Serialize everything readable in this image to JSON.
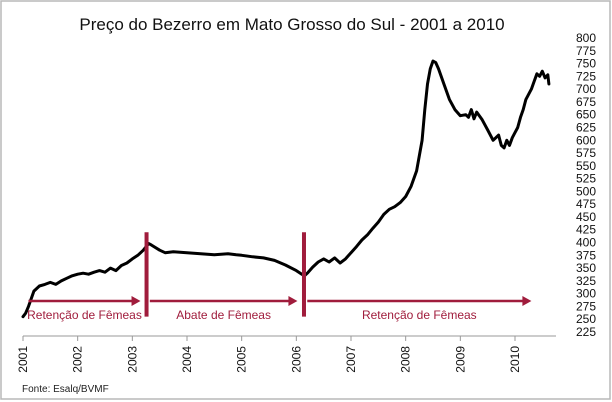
{
  "chart_data": {
    "type": "line",
    "title": "Preço do Bezerro em Mato Grosso do Sul - 2001 a 2010",
    "source": "Fonte: Esalq/BVMF",
    "x_ticks": [
      "2001",
      "2002",
      "2003",
      "2004",
      "2005",
      "2006",
      "2007",
      "2008",
      "2009",
      "2010"
    ],
    "xlim": [
      2001,
      2010.75
    ],
    "y_ticks": [
      "225",
      "250",
      "275",
      "300",
      "325",
      "350",
      "375",
      "400",
      "425",
      "450",
      "475",
      "500",
      "525",
      "550",
      "575",
      "600",
      "625",
      "650",
      "675",
      "700",
      "725",
      "750",
      "775",
      "800"
    ],
    "ylim": [
      225,
      800
    ],
    "line_color": "#000000",
    "annotation_color": "#a01c3c",
    "series": [
      {
        "values": [
          [
            2001.0,
            255
          ],
          [
            2001.05,
            262
          ],
          [
            2001.1,
            275
          ],
          [
            2001.15,
            290
          ],
          [
            2001.2,
            305
          ],
          [
            2001.3,
            315
          ],
          [
            2001.4,
            318
          ],
          [
            2001.5,
            322
          ],
          [
            2001.6,
            318
          ],
          [
            2001.7,
            325
          ],
          [
            2001.8,
            330
          ],
          [
            2001.9,
            335
          ],
          [
            2002.0,
            338
          ],
          [
            2002.1,
            340
          ],
          [
            2002.2,
            338
          ],
          [
            2002.3,
            342
          ],
          [
            2002.4,
            345
          ],
          [
            2002.5,
            342
          ],
          [
            2002.6,
            350
          ],
          [
            2002.7,
            345
          ],
          [
            2002.8,
            355
          ],
          [
            2002.9,
            360
          ],
          [
            2003.0,
            368
          ],
          [
            2003.1,
            375
          ],
          [
            2003.2,
            385
          ],
          [
            2003.3,
            398
          ],
          [
            2003.35,
            395
          ],
          [
            2003.5,
            385
          ],
          [
            2003.6,
            380
          ],
          [
            2003.75,
            382
          ],
          [
            2004.0,
            380
          ],
          [
            2004.25,
            378
          ],
          [
            2004.5,
            376
          ],
          [
            2004.75,
            378
          ],
          [
            2004.9,
            376
          ],
          [
            2005.0,
            375
          ],
          [
            2005.2,
            372
          ],
          [
            2005.4,
            370
          ],
          [
            2005.6,
            365
          ],
          [
            2005.8,
            356
          ],
          [
            2006.0,
            345
          ],
          [
            2006.1,
            338
          ],
          [
            2006.15,
            335
          ],
          [
            2006.2,
            340
          ],
          [
            2006.3,
            352
          ],
          [
            2006.4,
            362
          ],
          [
            2006.5,
            368
          ],
          [
            2006.6,
            362
          ],
          [
            2006.7,
            370
          ],
          [
            2006.8,
            360
          ],
          [
            2006.9,
            368
          ],
          [
            2007.0,
            380
          ],
          [
            2007.1,
            392
          ],
          [
            2007.2,
            405
          ],
          [
            2007.3,
            415
          ],
          [
            2007.4,
            428
          ],
          [
            2007.5,
            440
          ],
          [
            2007.6,
            455
          ],
          [
            2007.7,
            465
          ],
          [
            2007.8,
            470
          ],
          [
            2007.9,
            478
          ],
          [
            2008.0,
            490
          ],
          [
            2008.1,
            510
          ],
          [
            2008.2,
            540
          ],
          [
            2008.3,
            600
          ],
          [
            2008.35,
            660
          ],
          [
            2008.4,
            710
          ],
          [
            2008.45,
            740
          ],
          [
            2008.5,
            755
          ],
          [
            2008.55,
            752
          ],
          [
            2008.6,
            740
          ],
          [
            2008.7,
            710
          ],
          [
            2008.8,
            680
          ],
          [
            2008.9,
            660
          ],
          [
            2009.0,
            648
          ],
          [
            2009.1,
            650
          ],
          [
            2009.15,
            645
          ],
          [
            2009.2,
            660
          ],
          [
            2009.25,
            642
          ],
          [
            2009.3,
            655
          ],
          [
            2009.4,
            640
          ],
          [
            2009.5,
            620
          ],
          [
            2009.6,
            600
          ],
          [
            2009.7,
            610
          ],
          [
            2009.75,
            590
          ],
          [
            2009.8,
            585
          ],
          [
            2009.85,
            600
          ],
          [
            2009.9,
            590
          ],
          [
            2009.95,
            605
          ],
          [
            2010.0,
            615
          ],
          [
            2010.05,
            625
          ],
          [
            2010.1,
            645
          ],
          [
            2010.15,
            660
          ],
          [
            2010.2,
            680
          ],
          [
            2010.3,
            700
          ],
          [
            2010.35,
            715
          ],
          [
            2010.4,
            730
          ],
          [
            2010.45,
            725
          ],
          [
            2010.5,
            735
          ],
          [
            2010.55,
            722
          ],
          [
            2010.6,
            728
          ],
          [
            2010.62,
            710
          ]
        ]
      }
    ],
    "phases": [
      {
        "label": "Retenção de Fêmeas",
        "from": 2001.1,
        "to": 2003.15
      },
      {
        "label": "Abate de Fêmeas",
        "from": 2003.32,
        "to": 2006.02
      },
      {
        "label": "Retenção de Fêmeas",
        "from": 2006.2,
        "to": 2010.3
      }
    ],
    "separators": [
      {
        "x": 2003.26,
        "from": 255,
        "to": 420
      },
      {
        "x": 2006.14,
        "from": 255,
        "to": 420
      }
    ]
  }
}
